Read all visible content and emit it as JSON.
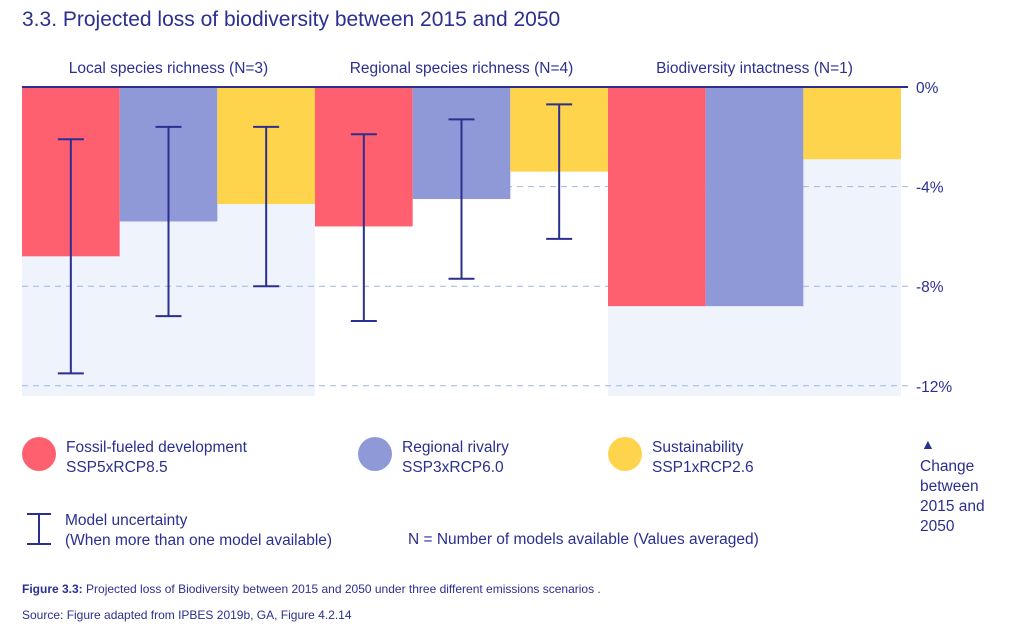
{
  "title": "3.3. Projected loss of biodiversity between 2015 and 2050",
  "colors": {
    "fossil": "#ff6070",
    "regional": "#8f99d8",
    "sustain": "#ffd44d",
    "bg_band": "#eef3fc",
    "navy": "#2b2f8f",
    "grid": "#9fb6e0"
  },
  "chart_data": {
    "type": "bar",
    "categories": [
      "Local species richness (N=3)",
      "Regional species richness (N=4)",
      "Biodiversity intactness (N=1)"
    ],
    "series": [
      {
        "name": "Fossil-fueled development SSP5xRCP8.5",
        "values": [
          -6.8,
          -5.6,
          -8.8
        ],
        "error_low": [
          -11.5,
          -9.4,
          null
        ],
        "error_high": [
          -2.1,
          -1.9,
          null
        ]
      },
      {
        "name": "Regional rivalry SSP3xRCP6.0",
        "values": [
          -5.4,
          -4.5,
          -8.8
        ],
        "error_low": [
          -9.2,
          -7.7,
          null
        ],
        "error_high": [
          -1.6,
          -1.3,
          null
        ]
      },
      {
        "name": "Sustainability SSP1xRCP2.6",
        "values": [
          -4.7,
          -3.4,
          -2.9
        ],
        "error_low": [
          -8.0,
          -6.1,
          null
        ],
        "error_high": [
          -1.6,
          -0.7,
          null
        ]
      }
    ],
    "background_band": [
      -12.4,
      -12.4,
      -12.4
    ],
    "ylim": [
      -12.4,
      0
    ],
    "yticks": [
      0,
      -4,
      -8,
      -12
    ],
    "ytick_labels": [
      "0%",
      "-4%",
      "-8%",
      "-12%"
    ],
    "grid": true
  },
  "legend": {
    "fossil_line1": "Fossil-fueled development",
    "fossil_line2": "SSP5xRCP8.5",
    "regional_line1": "Regional rivalry",
    "regional_line2": "SSP3xRCP6.0",
    "sustain_line1": "Sustainability",
    "sustain_line2": "SSP1xRCP2.6",
    "uncertainty_line1": "Model uncertainty",
    "uncertainty_line2": "(When more than one model available)",
    "n_note": "N = Number of models available (Values averaged)",
    "change_line1": "Change",
    "change_line2": "between",
    "change_line3": "2015 and",
    "change_line4": "2050"
  },
  "caption": {
    "label": "Figure 3.3:",
    "text": " Projected loss of Biodiversity between 2015 and 2050 under three different emissions scenarios .",
    "source": "Source: Figure adapted from IPBES 2019b, GA, Figure 4.2.14"
  }
}
